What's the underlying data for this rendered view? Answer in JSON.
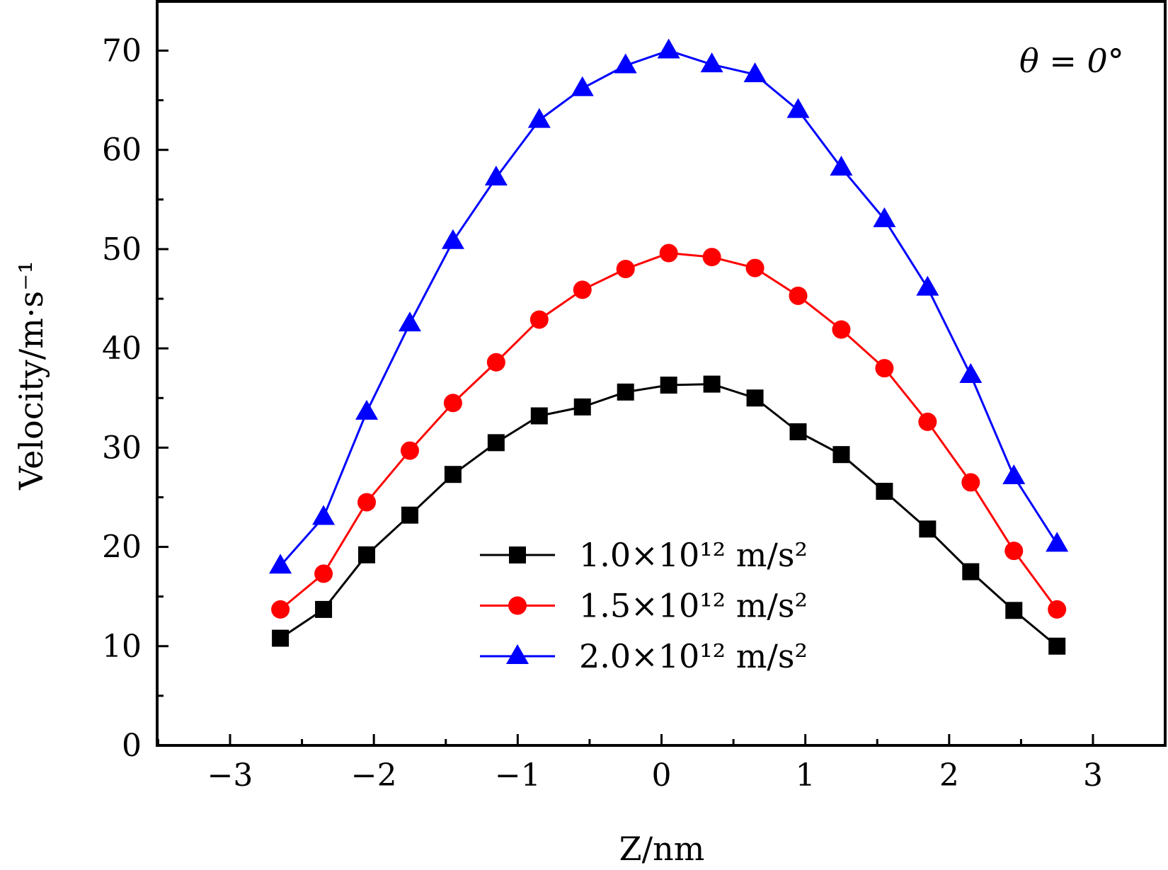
{
  "chart_data": {
    "type": "line",
    "title": "",
    "annotation": "θ = 0°",
    "xlabel": "Z/nm",
    "ylabel": "Velocity/m·s⁻¹",
    "xlim": [
      -3.5,
      3.5
    ],
    "ylim": [
      0,
      75
    ],
    "xticks": [
      -3,
      -2,
      -1,
      0,
      1,
      2,
      3
    ],
    "xtick_labels": [
      "−3",
      "−2",
      "−1",
      "0",
      "1",
      "2",
      "3"
    ],
    "yticks": [
      0,
      10,
      20,
      30,
      40,
      50,
      60,
      70
    ],
    "ytick_labels": [
      "0",
      "10",
      "20",
      "30",
      "40",
      "50",
      "60",
      "70"
    ],
    "grid": false,
    "legend_position": "bottom-center",
    "x": [
      -2.65,
      -2.35,
      -2.05,
      -1.75,
      -1.45,
      -1.15,
      -0.85,
      -0.55,
      -0.25,
      0.05,
      0.35,
      0.65,
      0.95,
      1.25,
      1.55,
      1.85,
      2.15,
      2.45,
      2.75
    ],
    "series": [
      {
        "name": "1.0×10¹² m/s²",
        "color": "#000000",
        "marker": "square",
        "values": [
          10.8,
          13.7,
          19.2,
          23.2,
          27.3,
          30.5,
          33.2,
          34.1,
          35.6,
          36.3,
          36.4,
          35.0,
          31.6,
          29.3,
          25.6,
          21.8,
          17.5,
          13.6,
          10.0
        ]
      },
      {
        "name": "1.5×10¹² m/s²",
        "color": "#ff0000",
        "marker": "circle",
        "values": [
          13.7,
          17.3,
          24.5,
          29.7,
          34.5,
          38.6,
          42.9,
          45.9,
          48.0,
          49.6,
          49.2,
          48.1,
          45.3,
          41.9,
          38.0,
          32.6,
          26.5,
          19.6,
          13.7
        ]
      },
      {
        "name": "2.0×10¹² m/s²",
        "color": "#0000ff",
        "marker": "triangle",
        "values": [
          18.1,
          23.0,
          33.6,
          42.5,
          50.8,
          57.2,
          63.0,
          66.2,
          68.5,
          70.0,
          68.6,
          67.6,
          64.0,
          58.2,
          53.0,
          46.1,
          37.3,
          27.1,
          20.3
        ]
      }
    ]
  }
}
